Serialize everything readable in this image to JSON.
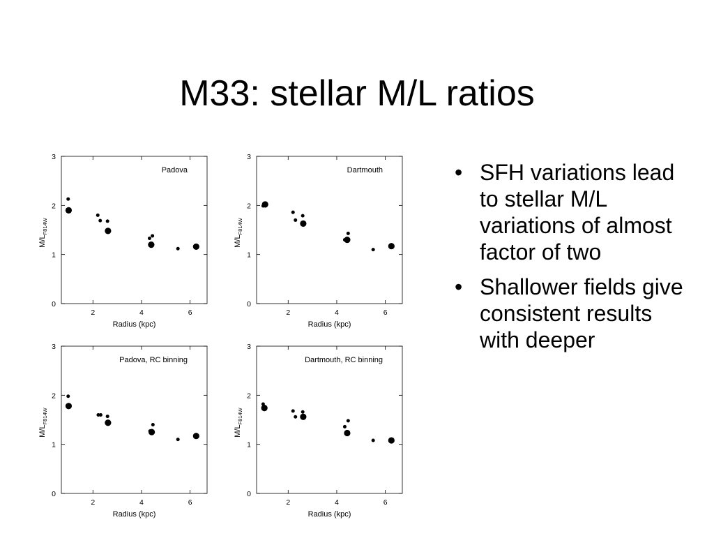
{
  "slide": {
    "title": "M33: stellar M/L ratios",
    "bullets": [
      "SFH variations lead to stellar M/L variations of almost factor of two",
      "Shallower fields give consistent results with deeper"
    ],
    "bullet_glyph": "•"
  },
  "chart_data": [
    {
      "type": "scatter",
      "title": "Padova",
      "xlabel": "Radius (kpc)",
      "ylabel": "M/L_F814W",
      "xlim": [
        0.7,
        6.7
      ],
      "ylim": [
        0,
        3
      ],
      "xticks": [
        2,
        4,
        6
      ],
      "yticks": [
        0,
        1,
        2,
        3
      ],
      "points": [
        {
          "x": 0.98,
          "y": 2.13,
          "size": "small"
        },
        {
          "x": 1.0,
          "y": 1.9,
          "size": "large"
        },
        {
          "x": 2.2,
          "y": 1.8,
          "size": "small"
        },
        {
          "x": 2.3,
          "y": 1.69,
          "size": "small"
        },
        {
          "x": 2.6,
          "y": 1.68,
          "size": "small"
        },
        {
          "x": 2.62,
          "y": 1.48,
          "size": "large"
        },
        {
          "x": 4.33,
          "y": 1.33,
          "size": "small"
        },
        {
          "x": 4.45,
          "y": 1.38,
          "size": "small"
        },
        {
          "x": 4.4,
          "y": 1.2,
          "size": "large"
        },
        {
          "x": 5.5,
          "y": 1.12,
          "size": "small"
        },
        {
          "x": 6.25,
          "y": 1.16,
          "size": "large"
        }
      ]
    },
    {
      "type": "scatter",
      "title": "Dartmouth",
      "xlabel": "Radius (kpc)",
      "ylabel": "M/L_F814W",
      "xlim": [
        0.7,
        6.7
      ],
      "ylim": [
        0,
        3
      ],
      "xticks": [
        2,
        4,
        6
      ],
      "yticks": [
        0,
        1,
        2,
        3
      ],
      "points": [
        {
          "x": 0.97,
          "y": 1.99,
          "size": "small"
        },
        {
          "x": 1.05,
          "y": 2.02,
          "size": "large"
        },
        {
          "x": 2.2,
          "y": 1.86,
          "size": "small"
        },
        {
          "x": 2.3,
          "y": 1.7,
          "size": "small"
        },
        {
          "x": 2.6,
          "y": 1.79,
          "size": "small"
        },
        {
          "x": 2.62,
          "y": 1.63,
          "size": "large"
        },
        {
          "x": 4.33,
          "y": 1.3,
          "size": "small"
        },
        {
          "x": 4.47,
          "y": 1.43,
          "size": "small"
        },
        {
          "x": 4.43,
          "y": 1.3,
          "size": "large"
        },
        {
          "x": 5.5,
          "y": 1.1,
          "size": "small"
        },
        {
          "x": 6.25,
          "y": 1.17,
          "size": "large"
        }
      ]
    },
    {
      "type": "scatter",
      "title": "Padova, RC binning",
      "xlabel": "Radius (kpc)",
      "ylabel": "M/L_F814W",
      "xlim": [
        0.7,
        6.7
      ],
      "ylim": [
        0,
        3
      ],
      "xticks": [
        2,
        4,
        6
      ],
      "yticks": [
        0,
        1,
        2,
        3
      ],
      "points": [
        {
          "x": 0.98,
          "y": 1.98,
          "size": "small"
        },
        {
          "x": 1.0,
          "y": 1.78,
          "size": "large"
        },
        {
          "x": 2.22,
          "y": 1.6,
          "size": "small"
        },
        {
          "x": 2.32,
          "y": 1.6,
          "size": "small"
        },
        {
          "x": 2.6,
          "y": 1.57,
          "size": "small"
        },
        {
          "x": 2.62,
          "y": 1.44,
          "size": "large"
        },
        {
          "x": 4.35,
          "y": 1.27,
          "size": "small"
        },
        {
          "x": 4.47,
          "y": 1.4,
          "size": "small"
        },
        {
          "x": 4.42,
          "y": 1.25,
          "size": "large"
        },
        {
          "x": 5.5,
          "y": 1.1,
          "size": "small"
        },
        {
          "x": 6.25,
          "y": 1.17,
          "size": "large"
        }
      ]
    },
    {
      "type": "scatter",
      "title": "Dartmouth, RC binning",
      "xlabel": "Radius (kpc)",
      "ylabel": "M/L_F814W",
      "xlim": [
        0.7,
        6.7
      ],
      "ylim": [
        0,
        3
      ],
      "xticks": [
        2,
        4,
        6
      ],
      "yticks": [
        0,
        1,
        2,
        3
      ],
      "points": [
        {
          "x": 0.97,
          "y": 1.82,
          "size": "small"
        },
        {
          "x": 1.02,
          "y": 1.74,
          "size": "large"
        },
        {
          "x": 2.2,
          "y": 1.68,
          "size": "small"
        },
        {
          "x": 2.3,
          "y": 1.56,
          "size": "small"
        },
        {
          "x": 2.6,
          "y": 1.66,
          "size": "small"
        },
        {
          "x": 2.62,
          "y": 1.56,
          "size": "large"
        },
        {
          "x": 4.33,
          "y": 1.36,
          "size": "small"
        },
        {
          "x": 4.47,
          "y": 1.48,
          "size": "small"
        },
        {
          "x": 4.43,
          "y": 1.23,
          "size": "large"
        },
        {
          "x": 5.5,
          "y": 1.08,
          "size": "small"
        },
        {
          "x": 6.25,
          "y": 1.08,
          "size": "large"
        }
      ]
    }
  ]
}
